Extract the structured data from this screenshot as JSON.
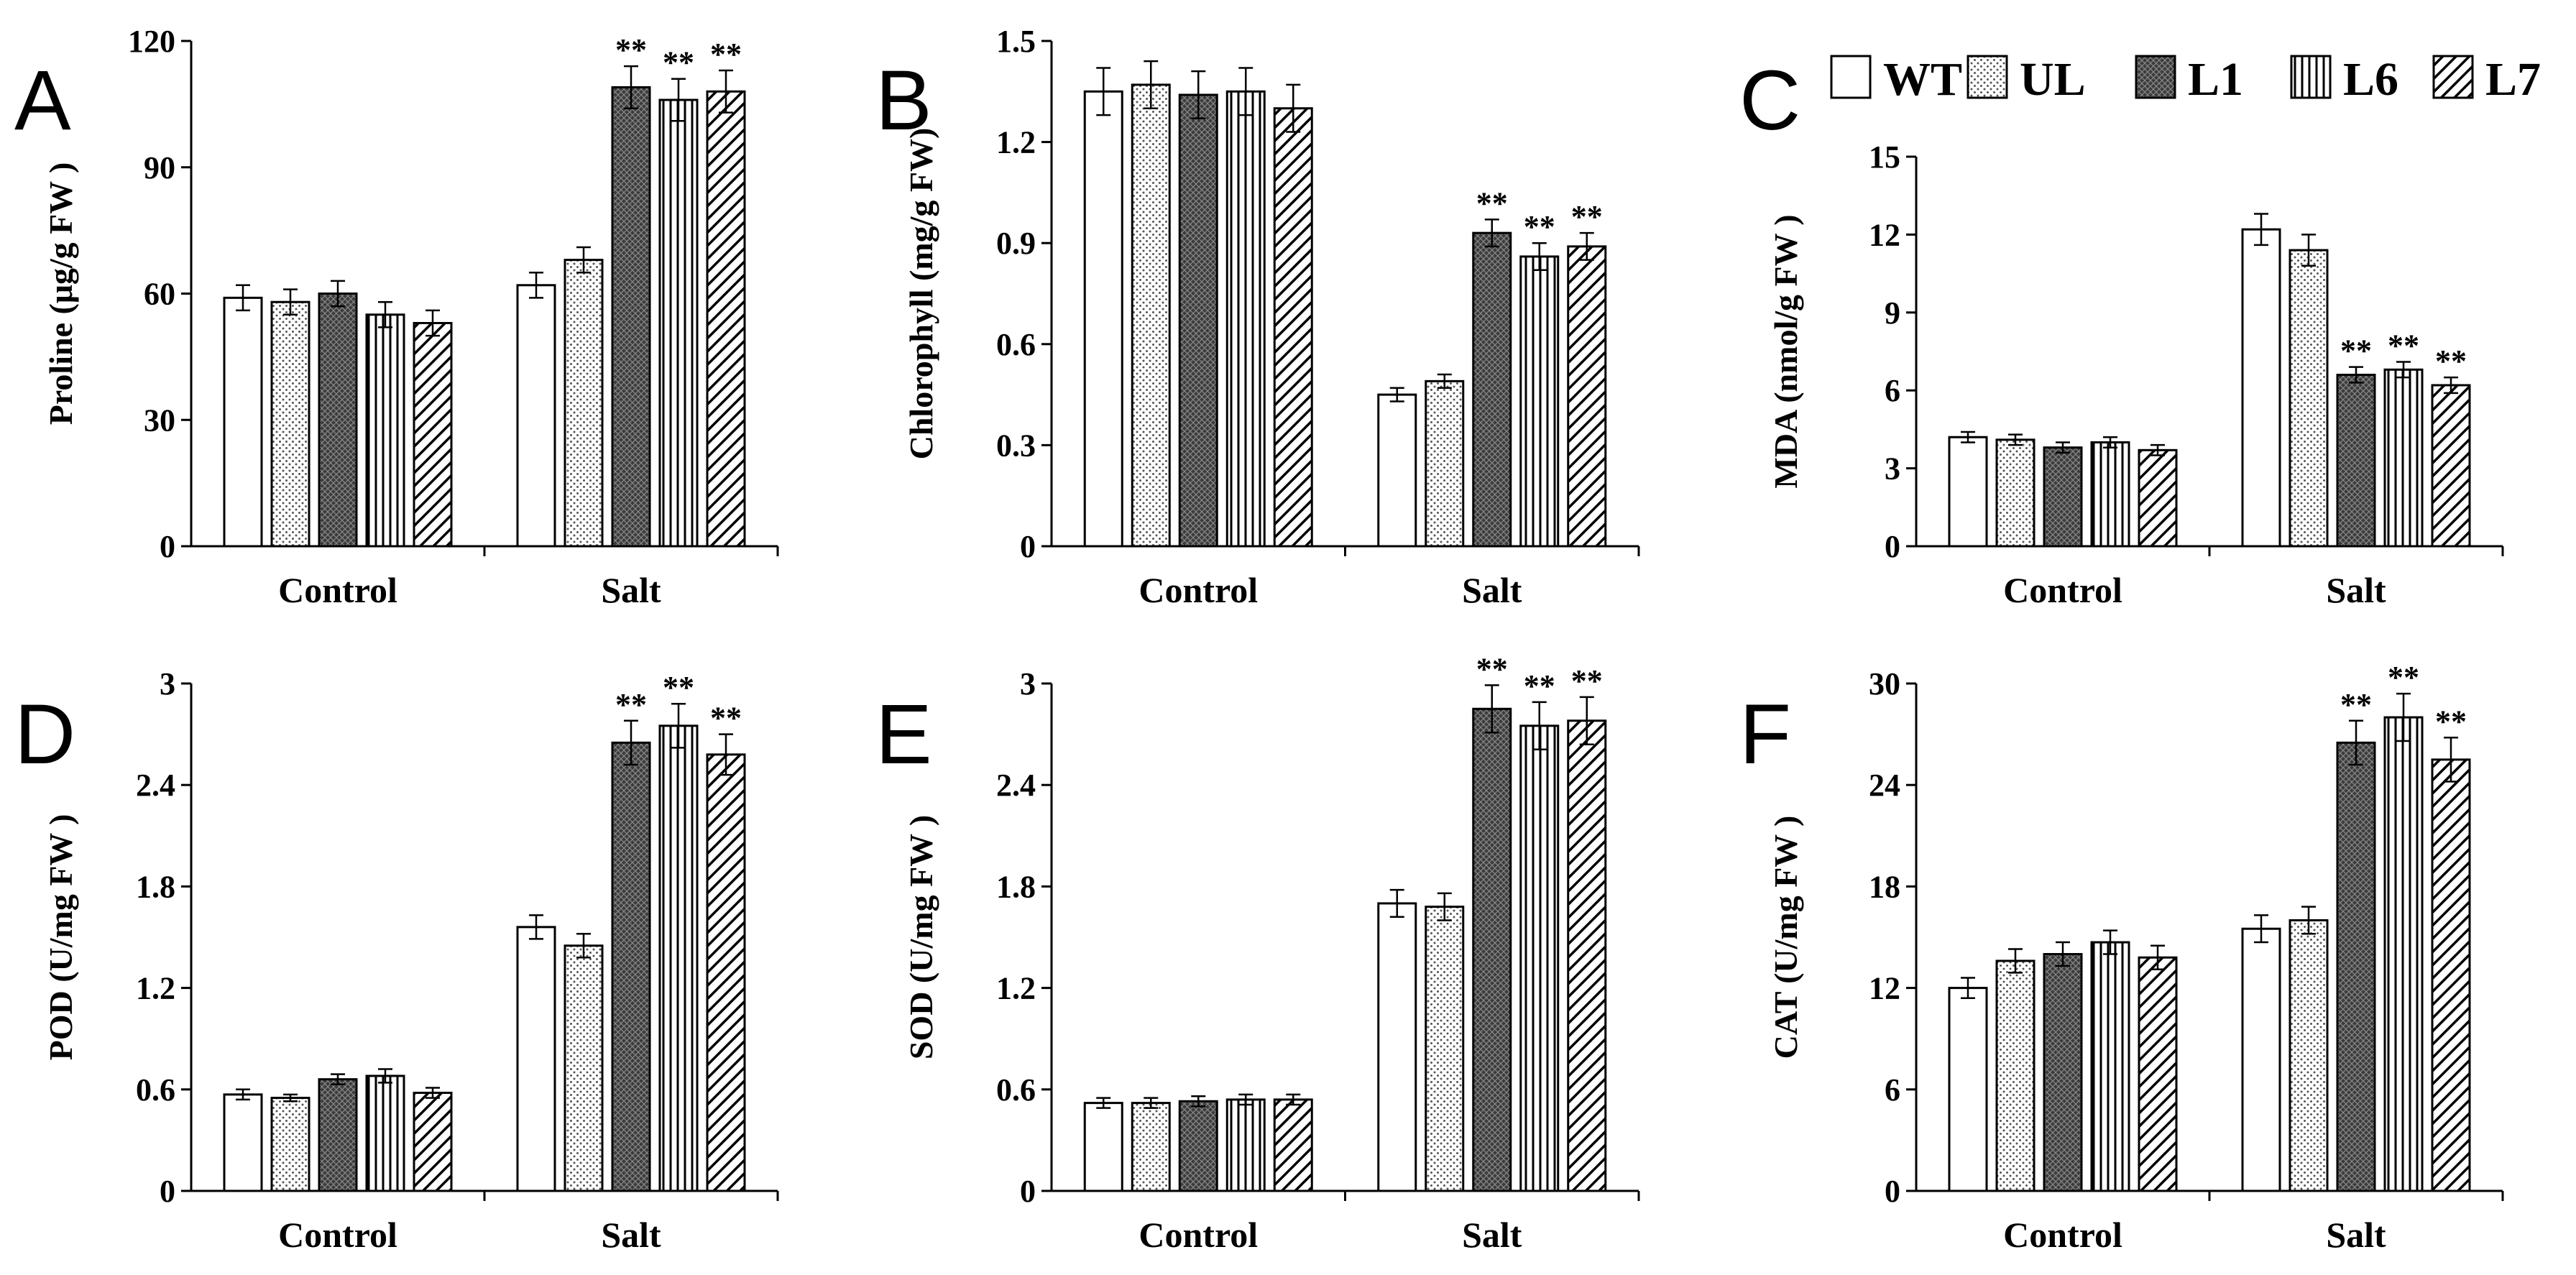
{
  "figure": {
    "legend": {
      "entries": [
        {
          "name": "WT",
          "pattern": "white"
        },
        {
          "name": "UL",
          "pattern": "dots"
        },
        {
          "name": "L1",
          "pattern": "dark"
        },
        {
          "name": "L6",
          "pattern": "vlines"
        },
        {
          "name": "L7",
          "pattern": "diag"
        }
      ]
    }
  },
  "chart_data": [
    {
      "panel": "A",
      "type": "bar",
      "ylabel": "Proline (μg/g FW )",
      "categories": [
        "Control",
        "Salt"
      ],
      "ylim": [
        0,
        120
      ],
      "yticks": [
        "0",
        "30",
        "60",
        "90",
        "120"
      ],
      "series": [
        {
          "name": "WT",
          "values": [
            59,
            62
          ],
          "errors": [
            3,
            3
          ],
          "sig": [
            "",
            ""
          ]
        },
        {
          "name": "UL",
          "values": [
            58,
            68
          ],
          "errors": [
            3,
            3
          ],
          "sig": [
            "",
            ""
          ]
        },
        {
          "name": "L1",
          "values": [
            60,
            109
          ],
          "errors": [
            3,
            5
          ],
          "sig": [
            "",
            "**"
          ]
        },
        {
          "name": "L6",
          "values": [
            55,
            106
          ],
          "errors": [
            3,
            5
          ],
          "sig": [
            "",
            "**"
          ]
        },
        {
          "name": "L7",
          "values": [
            53,
            108
          ],
          "errors": [
            3,
            5
          ],
          "sig": [
            "",
            "**"
          ]
        }
      ]
    },
    {
      "panel": "B",
      "type": "bar",
      "ylabel": "Chlorophyll (mg/g FW)",
      "categories": [
        "Control",
        "Salt"
      ],
      "ylim": [
        0,
        1.5
      ],
      "yticks": [
        "0",
        "0.3",
        "0.6",
        "0.9",
        "1.2",
        "1.5"
      ],
      "series": [
        {
          "name": "WT",
          "values": [
            1.35,
            0.45
          ],
          "errors": [
            0.07,
            0.02
          ],
          "sig": [
            "",
            ""
          ]
        },
        {
          "name": "UL",
          "values": [
            1.37,
            0.49
          ],
          "errors": [
            0.07,
            0.02
          ],
          "sig": [
            "",
            ""
          ]
        },
        {
          "name": "L1",
          "values": [
            1.34,
            0.93
          ],
          "errors": [
            0.07,
            0.04
          ],
          "sig": [
            "",
            "**"
          ]
        },
        {
          "name": "L6",
          "values": [
            1.35,
            0.86
          ],
          "errors": [
            0.07,
            0.04
          ],
          "sig": [
            "",
            "**"
          ]
        },
        {
          "name": "L7",
          "values": [
            1.3,
            0.89
          ],
          "errors": [
            0.07,
            0.04
          ],
          "sig": [
            "",
            "**"
          ]
        }
      ]
    },
    {
      "panel": "C",
      "type": "bar",
      "ylabel": "MDA (nmol/g FW )",
      "categories": [
        "Control",
        "Salt"
      ],
      "ylim": [
        0,
        15
      ],
      "yticks": [
        "0",
        "3",
        "6",
        "9",
        "12",
        "15"
      ],
      "series": [
        {
          "name": "WT",
          "values": [
            4.2,
            12.2
          ],
          "errors": [
            0.2,
            0.6
          ],
          "sig": [
            "",
            ""
          ]
        },
        {
          "name": "UL",
          "values": [
            4.1,
            11.4
          ],
          "errors": [
            0.2,
            0.6
          ],
          "sig": [
            "",
            ""
          ]
        },
        {
          "name": "L1",
          "values": [
            3.8,
            6.6
          ],
          "errors": [
            0.2,
            0.3
          ],
          "sig": [
            "",
            "**"
          ]
        },
        {
          "name": "L6",
          "values": [
            4.0,
            6.8
          ],
          "errors": [
            0.2,
            0.3
          ],
          "sig": [
            "",
            "**"
          ]
        },
        {
          "name": "L7",
          "values": [
            3.7,
            6.2
          ],
          "errors": [
            0.2,
            0.3
          ],
          "sig": [
            "",
            "**"
          ]
        }
      ]
    },
    {
      "panel": "D",
      "type": "bar",
      "ylabel": "POD (U/mg FW )",
      "categories": [
        "Control",
        "Salt"
      ],
      "ylim": [
        0,
        3
      ],
      "yticks": [
        "0",
        "0.6",
        "1.2",
        "1.8",
        "2.4",
        "3"
      ],
      "series": [
        {
          "name": "WT",
          "values": [
            0.57,
            1.56
          ],
          "errors": [
            0.03,
            0.07
          ],
          "sig": [
            "",
            ""
          ]
        },
        {
          "name": "UL",
          "values": [
            0.55,
            1.45
          ],
          "errors": [
            0.02,
            0.07
          ],
          "sig": [
            "",
            ""
          ]
        },
        {
          "name": "L1",
          "values": [
            0.66,
            2.65
          ],
          "errors": [
            0.03,
            0.13
          ],
          "sig": [
            "",
            "**"
          ]
        },
        {
          "name": "L6",
          "values": [
            0.68,
            2.75
          ],
          "errors": [
            0.04,
            0.13
          ],
          "sig": [
            "",
            "**"
          ]
        },
        {
          "name": "L7",
          "values": [
            0.58,
            2.58
          ],
          "errors": [
            0.03,
            0.12
          ],
          "sig": [
            "",
            "**"
          ]
        }
      ]
    },
    {
      "panel": "E",
      "type": "bar",
      "ylabel": "SOD (U/mg FW )",
      "categories": [
        "Control",
        "Salt"
      ],
      "ylim": [
        0,
        3
      ],
      "yticks": [
        "0",
        "0.6",
        "1.2",
        "1.8",
        "2.4",
        "3"
      ],
      "series": [
        {
          "name": "WT",
          "values": [
            0.52,
            1.7
          ],
          "errors": [
            0.03,
            0.08
          ],
          "sig": [
            "",
            ""
          ]
        },
        {
          "name": "UL",
          "values": [
            0.52,
            1.68
          ],
          "errors": [
            0.03,
            0.08
          ],
          "sig": [
            "",
            ""
          ]
        },
        {
          "name": "L1",
          "values": [
            0.53,
            2.85
          ],
          "errors": [
            0.03,
            0.14
          ],
          "sig": [
            "",
            "**"
          ]
        },
        {
          "name": "L6",
          "values": [
            0.54,
            2.75
          ],
          "errors": [
            0.03,
            0.14
          ],
          "sig": [
            "",
            "**"
          ]
        },
        {
          "name": "L7",
          "values": [
            0.54,
            2.78
          ],
          "errors": [
            0.03,
            0.14
          ],
          "sig": [
            "",
            "**"
          ]
        }
      ]
    },
    {
      "panel": "F",
      "type": "bar",
      "ylabel": "CAT (U/mg FW )",
      "categories": [
        "Control",
        "Salt"
      ],
      "ylim": [
        0,
        30
      ],
      "yticks": [
        "0",
        "6",
        "12",
        "18",
        "24",
        "30"
      ],
      "series": [
        {
          "name": "WT",
          "values": [
            12.0,
            15.5
          ],
          "errors": [
            0.6,
            0.8
          ],
          "sig": [
            "",
            ""
          ]
        },
        {
          "name": "UL",
          "values": [
            13.6,
            16.0
          ],
          "errors": [
            0.7,
            0.8
          ],
          "sig": [
            "",
            ""
          ]
        },
        {
          "name": "L1",
          "values": [
            14.0,
            26.5
          ],
          "errors": [
            0.7,
            1.3
          ],
          "sig": [
            "",
            "**"
          ]
        },
        {
          "name": "L6",
          "values": [
            14.7,
            28.0
          ],
          "errors": [
            0.7,
            1.4
          ],
          "sig": [
            "",
            "**"
          ]
        },
        {
          "name": "L7",
          "values": [
            13.8,
            25.5
          ],
          "errors": [
            0.7,
            1.3
          ],
          "sig": [
            "",
            "**"
          ]
        }
      ]
    }
  ]
}
